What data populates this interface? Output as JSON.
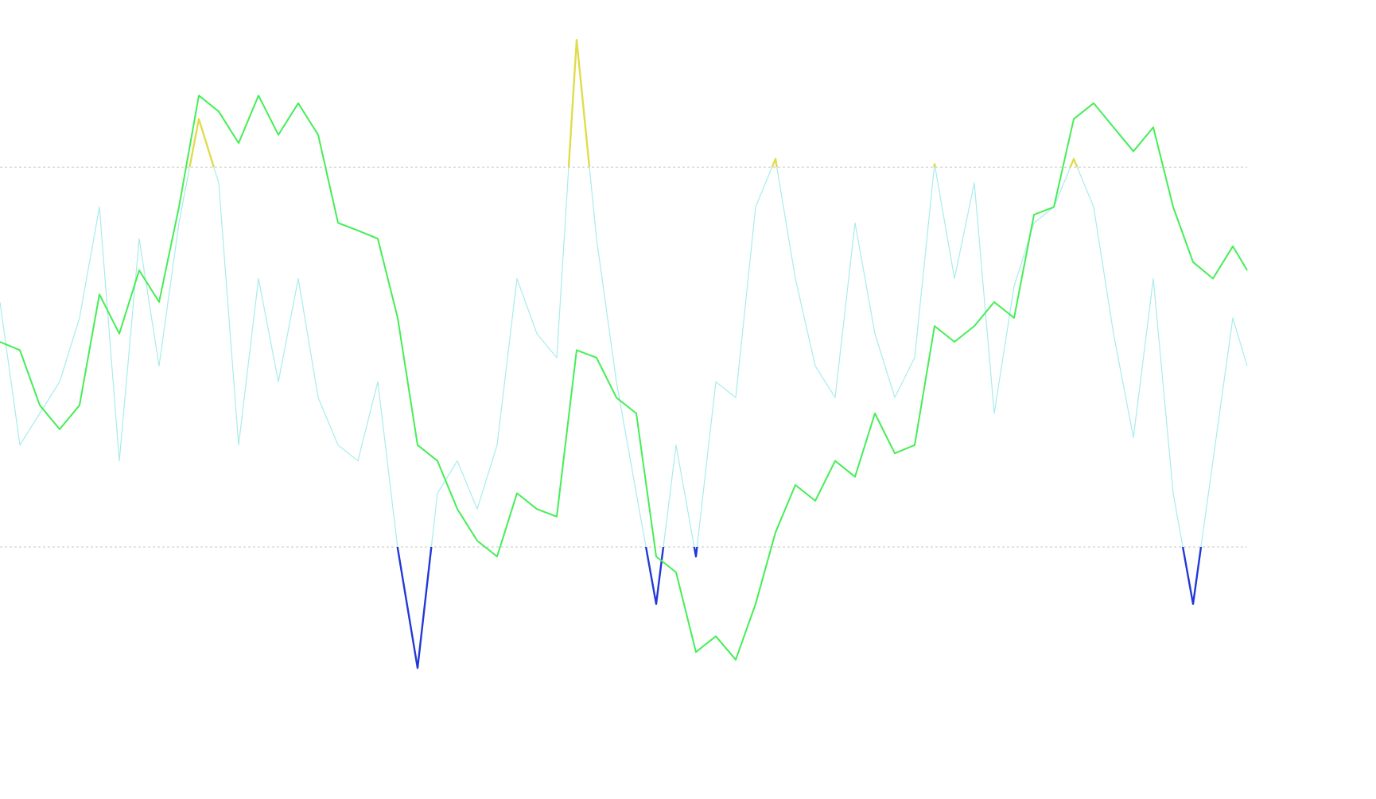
{
  "chart_data": {
    "type": "line",
    "x": [
      0,
      25,
      50,
      75,
      100,
      125,
      150,
      175,
      200,
      225,
      250,
      275,
      300,
      325,
      350,
      375,
      400,
      425,
      450,
      475,
      500,
      525,
      550,
      575,
      600,
      625,
      650,
      675,
      700,
      725,
      750,
      775,
      800,
      825,
      850,
      875,
      900,
      925,
      950,
      975,
      1000,
      1025,
      1050,
      1075,
      1100,
      1125,
      1150,
      1175,
      1200,
      1225,
      1250,
      1275,
      1300,
      1325,
      1350,
      1375,
      1400,
      1425,
      1450,
      1475,
      1500,
      1525,
      1550,
      1568
    ],
    "xlim": [
      0,
      1568
    ],
    "ylim": [
      -19.8,
      106.4
    ],
    "levels": [
      80,
      20
    ],
    "level_color": "#c8c8c8",
    "series": [
      {
        "color": "#44ee55",
        "width": 2,
        "values": [
          52.4,
          51.1,
          42.4,
          38.6,
          42.4,
          59.9,
          53.7,
          63.7,
          58.7,
          73.7,
          91.3,
          88.8,
          83.8,
          91.3,
          85.1,
          90.1,
          85.1,
          71.2,
          70.0,
          68.7,
          56.2,
          36.1,
          33.6,
          26.0,
          21.0,
          18.5,
          28.5,
          26.0,
          24.8,
          51.1,
          49.9,
          43.6,
          41.1,
          18.5,
          16.0,
          3.4,
          5.9,
          2.2,
          11.0,
          22.3,
          29.8,
          27.3,
          33.6,
          31.1,
          41.1,
          34.8,
          36.1,
          54.9,
          52.4,
          54.9,
          58.7,
          56.2,
          72.5,
          73.7,
          87.6,
          90.1,
          86.3,
          82.5,
          86.3,
          73.7,
          65.0,
          62.4,
          67.5,
          63.7
        ]
      },
      {
        "color": "#a8ecec",
        "color_above": "#e0dc4c",
        "color_below": "#2238d8",
        "width": 1.2,
        "values": [
          58.7,
          36.1,
          41.1,
          46.1,
          56.2,
          73.7,
          33.6,
          68.7,
          48.6,
          71.2,
          87.6,
          77.5,
          36.1,
          62.4,
          46.1,
          62.4,
          43.6,
          36.1,
          33.6,
          46.1,
          19.8,
          0.9,
          28.5,
          33.6,
          26.0,
          36.1,
          62.4,
          53.7,
          49.9,
          100.1,
          68.7,
          46.1,
          28.5,
          11.0,
          36.1,
          18.5,
          46.1,
          43.6,
          73.7,
          81.3,
          62.4,
          48.6,
          43.6,
          71.2,
          53.7,
          43.6,
          49.9,
          80.5,
          62.4,
          77.5,
          41.1,
          61.2,
          71.2,
          73.7,
          81.3,
          73.7,
          53.7,
          37.3,
          62.4,
          28.5,
          11.0,
          33.6,
          56.2,
          48.6
        ]
      }
    ]
  }
}
